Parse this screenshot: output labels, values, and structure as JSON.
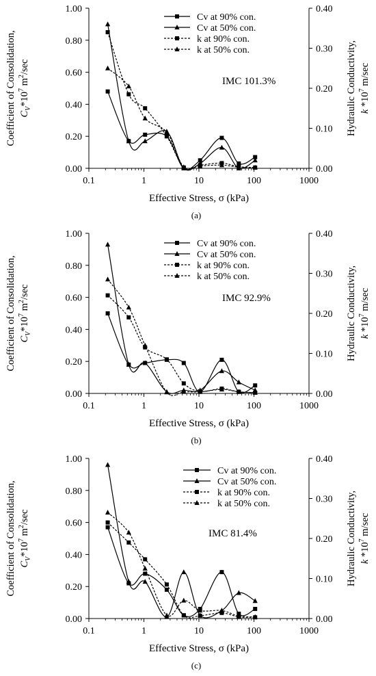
{
  "chart_data": [
    {
      "type": "line",
      "panel_label": "(a)",
      "annotation": "IMC 101.3%",
      "xlabel": "Effective Stress, σ (kPa)",
      "ylabel_left": {
        "line1": "Coefficient of Consolidation,",
        "line2_prefix": "C",
        "line2_sub": "V",
        "line2_mid": "*10",
        "line2_sup": "7",
        "line2_suffix": " m",
        "line2_sup2": "2",
        "line2_end": "/sec"
      },
      "ylabel_right": {
        "line1": "Hydraulic Conductivity,",
        "line2_prefix": "k",
        "line2_mid": " *10",
        "line2_sup": "7",
        "line2_suffix": " m/sec"
      },
      "x_scale": "log",
      "xlim": [
        0.1,
        1000
      ],
      "x_ticks": [
        "0.1",
        "1",
        "10",
        "100",
        "1000"
      ],
      "ylim_left": [
        0,
        1.0
      ],
      "y_ticks_left": [
        "0.00",
        "0.20",
        "0.40",
        "0.60",
        "0.80",
        "1.00"
      ],
      "ylim_right": [
        0,
        0.4
      ],
      "y_ticks_right": [
        "0.00",
        "0.10",
        "0.20",
        "0.30",
        "0.40"
      ],
      "legend_position": "top-right",
      "series": [
        {
          "name": "Cv at 90% con.",
          "axis": "left",
          "marker": "square",
          "dashed": false,
          "x": [
            0.22,
            0.53,
            1.05,
            2.6,
            5.3,
            10.5,
            26,
            53,
            105
          ],
          "y": [
            0.48,
            0.17,
            0.21,
            0.2,
            0.0,
            0.05,
            0.19,
            0.03,
            0.07
          ]
        },
        {
          "name": "Cv at 50% con.",
          "axis": "left",
          "marker": "triangle",
          "dashed": false,
          "x": [
            0.22,
            0.53,
            1.05,
            2.6,
            5.3,
            10.5,
            26,
            53,
            105
          ],
          "y": [
            0.9,
            0.17,
            0.17,
            0.23,
            0.0,
            0.03,
            0.13,
            0.0,
            0.05
          ]
        },
        {
          "name": "k at 90% con.",
          "axis": "right",
          "marker": "square",
          "dashed": true,
          "x": [
            0.22,
            0.53,
            1.05,
            2.6,
            5.3,
            10.5,
            26,
            53,
            105
          ],
          "y": [
            0.34,
            0.185,
            0.15,
            0.08,
            0.002,
            0.008,
            0.013,
            0.004,
            0.002
          ]
        },
        {
          "name": "k at 50% con.",
          "axis": "right",
          "marker": "triangle",
          "dashed": true,
          "x": [
            0.22,
            0.53,
            1.05,
            2.6,
            5.3,
            10.5,
            26,
            53,
            105
          ],
          "y": [
            0.25,
            0.205,
            0.125,
            0.09,
            0.003,
            0.006,
            0.008,
            0.003,
            0.002
          ]
        }
      ]
    },
    {
      "type": "line",
      "panel_label": "(b)",
      "annotation": "IMC 92.9%",
      "xlabel": "Effective Stress, σ (kPa)",
      "ylabel_left": {
        "line1": "Coefficient of Consolidation,",
        "line2_prefix": "C",
        "line2_sub": "V",
        "line2_mid": "*10",
        "line2_sup": "7",
        "line2_suffix": " m",
        "line2_sup2": "2",
        "line2_end": "/sec"
      },
      "ylabel_right": {
        "line1": "Hydraulic Conductivity,",
        "line2_prefix": "k",
        "line2_mid": " *10",
        "line2_sup": "7",
        "line2_suffix": " m/sec"
      },
      "x_scale": "log",
      "xlim": [
        0.1,
        1000
      ],
      "x_ticks": [
        "0.1",
        "1",
        "10",
        "100",
        "1000"
      ],
      "ylim_left": [
        0,
        1.0
      ],
      "y_ticks_left": [
        "0.00",
        "0.20",
        "0.40",
        "0.60",
        "0.80",
        "1.00"
      ],
      "ylim_right": [
        0,
        0.4
      ],
      "y_ticks_right": [
        "0.00",
        "0.10",
        "0.20",
        "0.30",
        "0.40"
      ],
      "legend_position": "top-right",
      "series": [
        {
          "name": "Cv at 90% con.",
          "axis": "left",
          "marker": "square",
          "dashed": false,
          "x": [
            0.22,
            0.53,
            1.05,
            2.6,
            5.3,
            10.5,
            26,
            53,
            105
          ],
          "y": [
            0.5,
            0.18,
            0.19,
            0.21,
            0.19,
            0.01,
            0.21,
            0.01,
            0.05
          ]
        },
        {
          "name": "Cv at 50% con.",
          "axis": "left",
          "marker": "triangle",
          "dashed": false,
          "x": [
            0.22,
            0.53,
            1.05,
            2.6,
            5.3,
            10.5,
            26,
            53,
            105
          ],
          "y": [
            0.93,
            0.18,
            0.19,
            0.01,
            0.02,
            0.02,
            0.14,
            0.07,
            0.02
          ]
        },
        {
          "name": "k at 90% con.",
          "axis": "right",
          "marker": "square",
          "dashed": true,
          "x": [
            0.22,
            0.53,
            1.05,
            2.6,
            5.3,
            10.5,
            26,
            53,
            105
          ],
          "y": [
            0.245,
            0.19,
            0.115,
            0.085,
            0.025,
            0.005,
            0.012,
            0.004,
            0.002
          ]
        },
        {
          "name": "k at 50% con.",
          "axis": "right",
          "marker": "triangle",
          "dashed": true,
          "x": [
            0.22,
            0.53,
            1.05,
            2.6,
            5.3,
            10.5,
            26,
            53,
            105
          ],
          "y": [
            0.285,
            0.215,
            0.12,
            0.003,
            0.004,
            0.004,
            0.01,
            0.004,
            0.002
          ]
        }
      ]
    },
    {
      "type": "line",
      "panel_label": "(c)",
      "annotation": "IMC 81.4%",
      "xlabel": "Effective Stress, σ (kPa)",
      "ylabel_left": {
        "line1": "Coefficient of Consolidation,",
        "line2_prefix": "C",
        "line2_sub": "V",
        "line2_mid": "*10",
        "line2_sup": "7",
        "line2_suffix": " m",
        "line2_sup2": "2",
        "line2_end": "/sec"
      },
      "ylabel_right": {
        "line1": "Hydraulic Conductivity,",
        "line2_prefix": "k",
        "line2_mid": " *10",
        "line2_sup": "7",
        "line2_suffix": " m/sec"
      },
      "x_scale": "log",
      "xlim": [
        0.1,
        1000
      ],
      "x_ticks": [
        "0.1",
        "1",
        "10",
        "100",
        "1000"
      ],
      "ylim_left": [
        0,
        1.0
      ],
      "y_ticks_left": [
        "0.00",
        "0.20",
        "0.40",
        "0.60",
        "0.80",
        "1.00"
      ],
      "ylim_right": [
        0,
        0.4
      ],
      "y_ticks_right": [
        "0.00",
        "0.10",
        "0.20",
        "0.30",
        "0.40"
      ],
      "legend_position": "top-right",
      "series": [
        {
          "name": "Cv at 90% con.",
          "axis": "left",
          "marker": "square",
          "dashed": false,
          "x": [
            0.22,
            0.53,
            1.05,
            2.6,
            5.3,
            10.5,
            26,
            53,
            105
          ],
          "y": [
            0.57,
            0.22,
            0.28,
            0.18,
            0.02,
            0.06,
            0.29,
            0.03,
            0.06
          ]
        },
        {
          "name": "Cv at 50% con.",
          "axis": "left",
          "marker": "triangle",
          "dashed": false,
          "x": [
            0.22,
            0.53,
            1.05,
            2.6,
            5.3,
            10.5,
            26,
            53,
            105
          ],
          "y": [
            0.96,
            0.23,
            0.23,
            0.01,
            0.29,
            0.02,
            0.05,
            0.16,
            0.11
          ]
        },
        {
          "name": "k at 90% con.",
          "axis": "right",
          "marker": "square",
          "dashed": true,
          "x": [
            0.22,
            0.53,
            1.05,
            2.6,
            5.3,
            10.5,
            26,
            53,
            105
          ],
          "y": [
            0.24,
            0.19,
            0.148,
            0.085,
            0.008,
            0.007,
            0.014,
            0.004,
            0.003
          ]
        },
        {
          "name": "k at 50% con.",
          "axis": "right",
          "marker": "triangle",
          "dashed": true,
          "x": [
            0.22,
            0.53,
            1.05,
            2.6,
            5.3,
            10.5,
            26,
            53,
            105
          ],
          "y": [
            0.265,
            0.215,
            0.125,
            0.008,
            0.045,
            0.02,
            0.02,
            0.006,
            0.004
          ]
        }
      ]
    }
  ]
}
